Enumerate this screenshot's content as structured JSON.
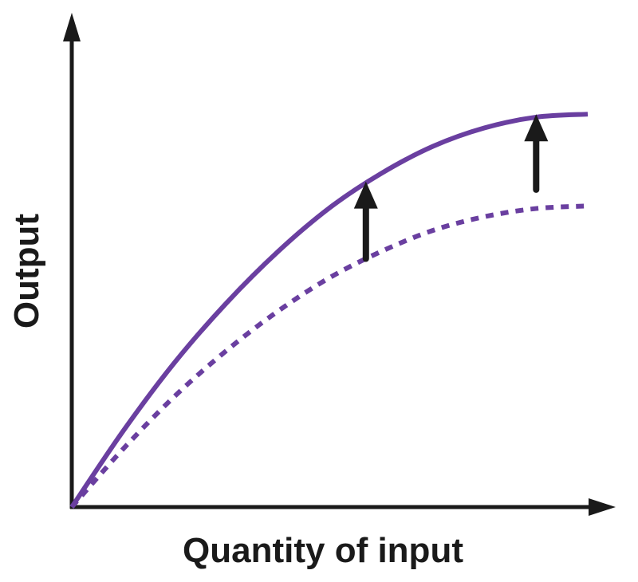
{
  "chart_data": {
    "type": "line",
    "title": "",
    "xlabel": "Quantity of input",
    "ylabel": "Output",
    "xlim": [
      0,
      10
    ],
    "ylim": [
      0,
      10
    ],
    "grid": false,
    "legend": "none",
    "series": [
      {
        "style": "solid",
        "color": "#6a3fa0",
        "x": [
          0,
          1,
          2,
          3,
          4,
          5,
          6,
          7,
          8,
          9,
          10
        ],
        "y": [
          0,
          1.78,
          3.38,
          4.76,
          5.96,
          6.98,
          7.78,
          8.41,
          8.84,
          9.09,
          9.16
        ]
      },
      {
        "style": "dashed",
        "color": "#6a3fa0",
        "x": [
          0,
          1,
          2,
          3,
          4,
          5,
          6,
          7,
          8,
          9,
          10
        ],
        "y": [
          0,
          1.36,
          2.59,
          3.65,
          4.57,
          5.35,
          5.96,
          6.45,
          6.77,
          6.96,
          7.02
        ]
      }
    ],
    "annotations": [
      {
        "type": "arrow",
        "direction": "up",
        "at_x": 5.7,
        "y_from": 5.79,
        "y_to": 7.59,
        "color": "#1a1a1a"
      },
      {
        "type": "arrow",
        "direction": "up",
        "at_x": 9.0,
        "y_from": 7.4,
        "y_to": 9.16,
        "color": "#1a1a1a"
      }
    ]
  }
}
